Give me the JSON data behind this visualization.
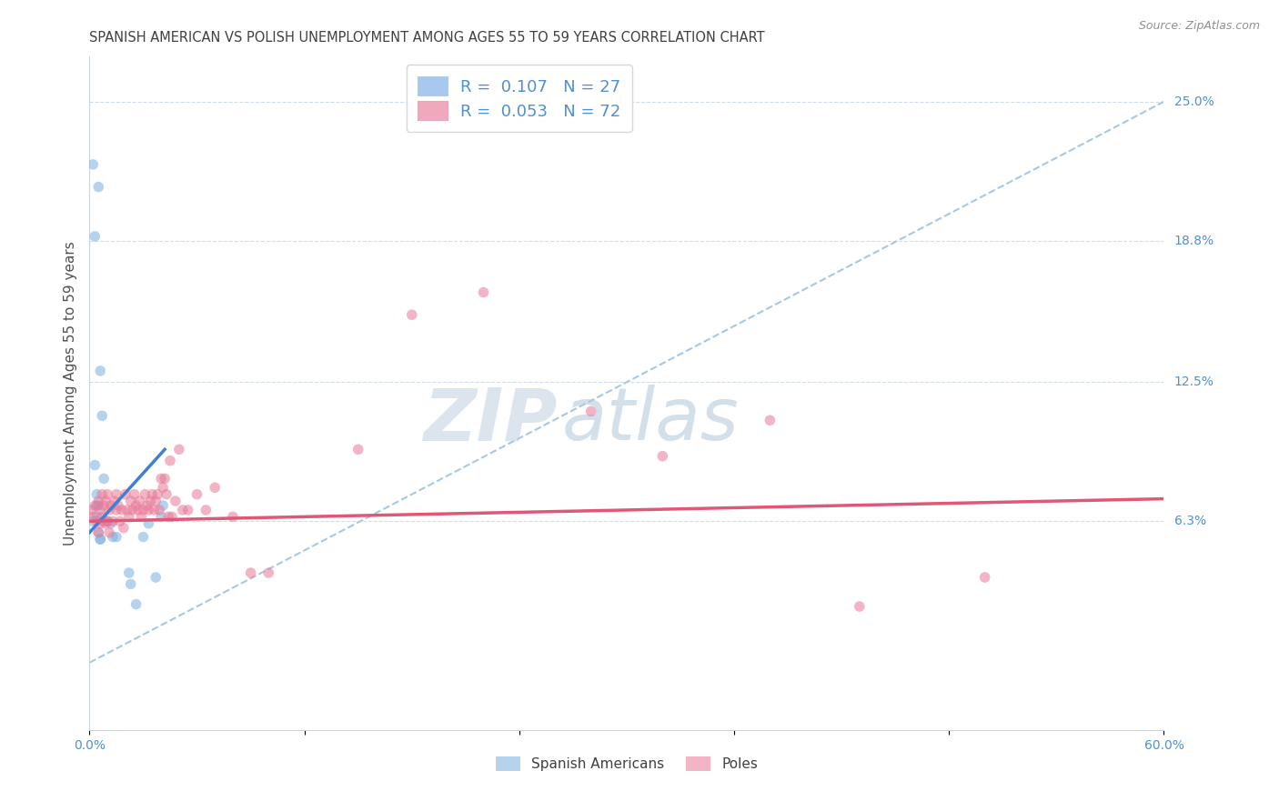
{
  "title": "SPANISH AMERICAN VS POLISH UNEMPLOYMENT AMONG AGES 55 TO 59 YEARS CORRELATION CHART",
  "source": "Source: ZipAtlas.com",
  "ylabel": "Unemployment Among Ages 55 to 59 years",
  "xlim": [
    0.0,
    0.6
  ],
  "ylim": [
    -0.03,
    0.27
  ],
  "xticks": [
    0.0,
    0.12,
    0.24,
    0.36,
    0.48,
    0.6
  ],
  "xticklabels": [
    "0.0%",
    "",
    "",
    "",
    "",
    "60.0%"
  ],
  "ytick_positions": [
    0.063,
    0.125,
    0.188,
    0.25
  ],
  "ytick_labels": [
    "6.3%",
    "12.5%",
    "18.8%",
    "25.0%"
  ],
  "watermark_zip": "ZIP",
  "watermark_atlas": "atlas",
  "legend_entries": [
    {
      "label": "R =  0.107   N = 27",
      "color": "#a8c8f0"
    },
    {
      "label": "R =  0.053   N = 72",
      "color": "#f0a8bc"
    }
  ],
  "spanish_scatter_x": [
    0.002,
    0.005,
    0.003,
    0.002,
    0.004,
    0.004,
    0.005,
    0.006,
    0.003,
    0.004,
    0.005,
    0.006,
    0.006,
    0.007,
    0.008,
    0.01,
    0.012,
    0.013,
    0.015,
    0.022,
    0.023,
    0.026,
    0.03,
    0.033,
    0.037,
    0.04,
    0.041
  ],
  "spanish_scatter_y": [
    0.222,
    0.212,
    0.19,
    0.063,
    0.07,
    0.065,
    0.058,
    0.055,
    0.088,
    0.075,
    0.07,
    0.055,
    0.13,
    0.11,
    0.082,
    0.063,
    0.062,
    0.056,
    0.056,
    0.04,
    0.035,
    0.026,
    0.056,
    0.062,
    0.038,
    0.065,
    0.07
  ],
  "polish_scatter_x": [
    0.001,
    0.002,
    0.003,
    0.004,
    0.005,
    0.005,
    0.006,
    0.006,
    0.007,
    0.007,
    0.008,
    0.008,
    0.009,
    0.009,
    0.01,
    0.01,
    0.011,
    0.011,
    0.012,
    0.013,
    0.014,
    0.015,
    0.015,
    0.016,
    0.017,
    0.018,
    0.019,
    0.02,
    0.021,
    0.022,
    0.023,
    0.024,
    0.025,
    0.026,
    0.027,
    0.028,
    0.029,
    0.03,
    0.031,
    0.032,
    0.033,
    0.034,
    0.035,
    0.036,
    0.037,
    0.038,
    0.039,
    0.04,
    0.041,
    0.042,
    0.043,
    0.044,
    0.045,
    0.046,
    0.048,
    0.05,
    0.052,
    0.055,
    0.06,
    0.065,
    0.07,
    0.08,
    0.09,
    0.1,
    0.15,
    0.18,
    0.22,
    0.28,
    0.32,
    0.38,
    0.43,
    0.5
  ],
  "polish_scatter_y": [
    0.068,
    0.065,
    0.07,
    0.063,
    0.058,
    0.072,
    0.068,
    0.062,
    0.075,
    0.065,
    0.07,
    0.063,
    0.072,
    0.062,
    0.075,
    0.063,
    0.068,
    0.058,
    0.07,
    0.063,
    0.072,
    0.075,
    0.068,
    0.07,
    0.063,
    0.068,
    0.06,
    0.075,
    0.068,
    0.065,
    0.072,
    0.068,
    0.075,
    0.07,
    0.068,
    0.072,
    0.065,
    0.068,
    0.075,
    0.07,
    0.068,
    0.072,
    0.075,
    0.068,
    0.072,
    0.075,
    0.068,
    0.082,
    0.078,
    0.082,
    0.075,
    0.065,
    0.09,
    0.065,
    0.072,
    0.095,
    0.068,
    0.068,
    0.075,
    0.068,
    0.078,
    0.065,
    0.04,
    0.04,
    0.095,
    0.155,
    0.165,
    0.112,
    0.092,
    0.108,
    0.025,
    0.038
  ],
  "spanish_line_x": [
    0.0,
    0.042
  ],
  "spanish_line_y": [
    0.058,
    0.095
  ],
  "polish_line_x": [
    0.0,
    0.6
  ],
  "polish_line_y": [
    0.063,
    0.073
  ],
  "dashed_line_x": [
    0.0,
    0.6
  ],
  "dashed_line_y": [
    0.0,
    0.25
  ],
  "spanish_color": "#7ab0e0",
  "polish_color": "#e87898",
  "spanish_line_color": "#4080d0",
  "polish_line_color": "#e05878",
  "dashed_line_color": "#a8c8e0",
  "title_color": "#404040",
  "source_color": "#909090",
  "axis_label_color": "#505050",
  "tick_label_color": "#5090d0",
  "grid_color": "#d0dce8",
  "background_color": "#ffffff",
  "watermark_zip_color": "#c0d0e0",
  "watermark_atlas_color": "#b0c8d8",
  "scatter_size": 70,
  "scatter_alpha": 0.55,
  "title_fontsize": 10.5,
  "source_fontsize": 9,
  "ylabel_fontsize": 11,
  "tick_fontsize": 10,
  "legend_fontsize": 13,
  "watermark_fontsize": 58
}
